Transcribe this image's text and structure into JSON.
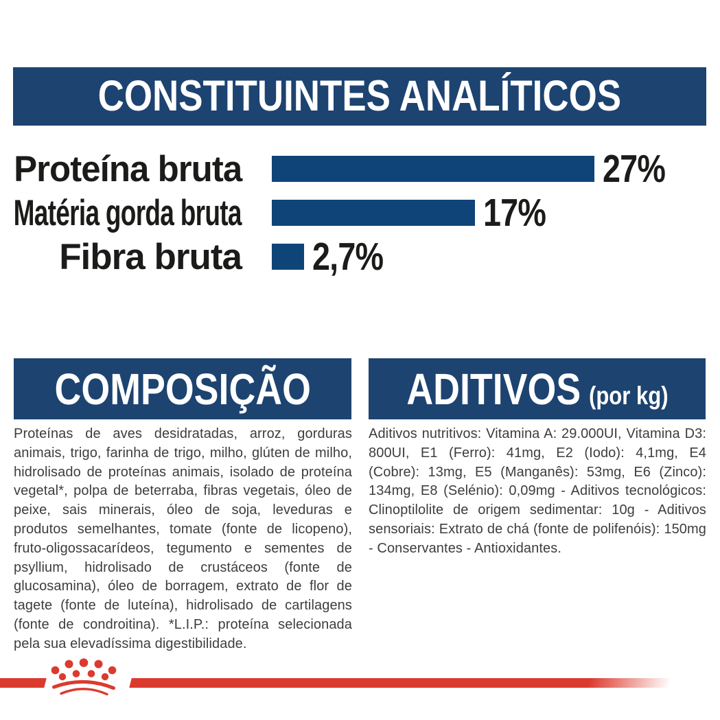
{
  "colors": {
    "navy": "#1D4370",
    "bar_blue": "#0F4478",
    "red": "#DC3A2E",
    "heading_text": "#FFFFFF",
    "chart_text": "#1B1B19",
    "body_text": "#3D3D3C"
  },
  "chart_data": {
    "type": "bar",
    "orientation": "horizontal",
    "title": "CONSTITUINTES ANALÍTICOS",
    "categories": [
      "Proteína bruta",
      "Matéria gorda bruta",
      "Fibra bruta"
    ],
    "values": [
      27,
      17,
      2.7
    ],
    "value_labels": [
      "27%",
      "17%",
      "2,7%"
    ],
    "unit": "%",
    "xlim": [
      0,
      27
    ],
    "grid": false,
    "legend": false,
    "bar_color": "#0F4478"
  },
  "sections": {
    "analytical": {
      "title": "CONSTITUINTES ANALÍTICOS"
    },
    "composition": {
      "title": "COMPOSIÇÃO",
      "body": "Proteínas de aves desidratadas, arroz, gorduras animais, trigo, farinha de trigo, milho, glúten de milho, hidrolisado de proteínas animais, isolado de proteína vegetal*, polpa de beterraba, fibras vegetais, óleo de peixe, sais minerais, óleo de soja, leveduras e produtos semelhantes, tomate (fonte de licopeno), fruto-oligossacarídeos, tegumento e sementes de psyllium, hidrolisado de crustáceos (fonte de glucosamina), óleo de borragem, extrato de flor de tagete (fonte de luteína), hidrolisado de cartilagens (fonte de condroitina). *L.I.P.: proteína selecionada pela sua elevadíssima digestibilidade."
    },
    "additives": {
      "title": "ADITIVOS",
      "suffix": "(por kg)",
      "body": "Aditivos nutritivos: Vitamina A: 29.000UI, Vitamina D3: 800UI, E1 (Ferro): 41mg, E2 (Iodo): 4,1mg, E4 (Cobre): 13mg, E5 (Manganês): 53mg, E6 (Zinco): 134mg, E8 (Selénio): 0,09mg - Aditivos tecnológicos: Clinoptilolite de origem sedimentar: 10g - Aditivos sensoriais: Extrato de chá (fonte de polifenóis): 150mg - Conservantes - Antioxidantes."
    }
  },
  "footer": {
    "logo": "royal-canin-crown"
  }
}
